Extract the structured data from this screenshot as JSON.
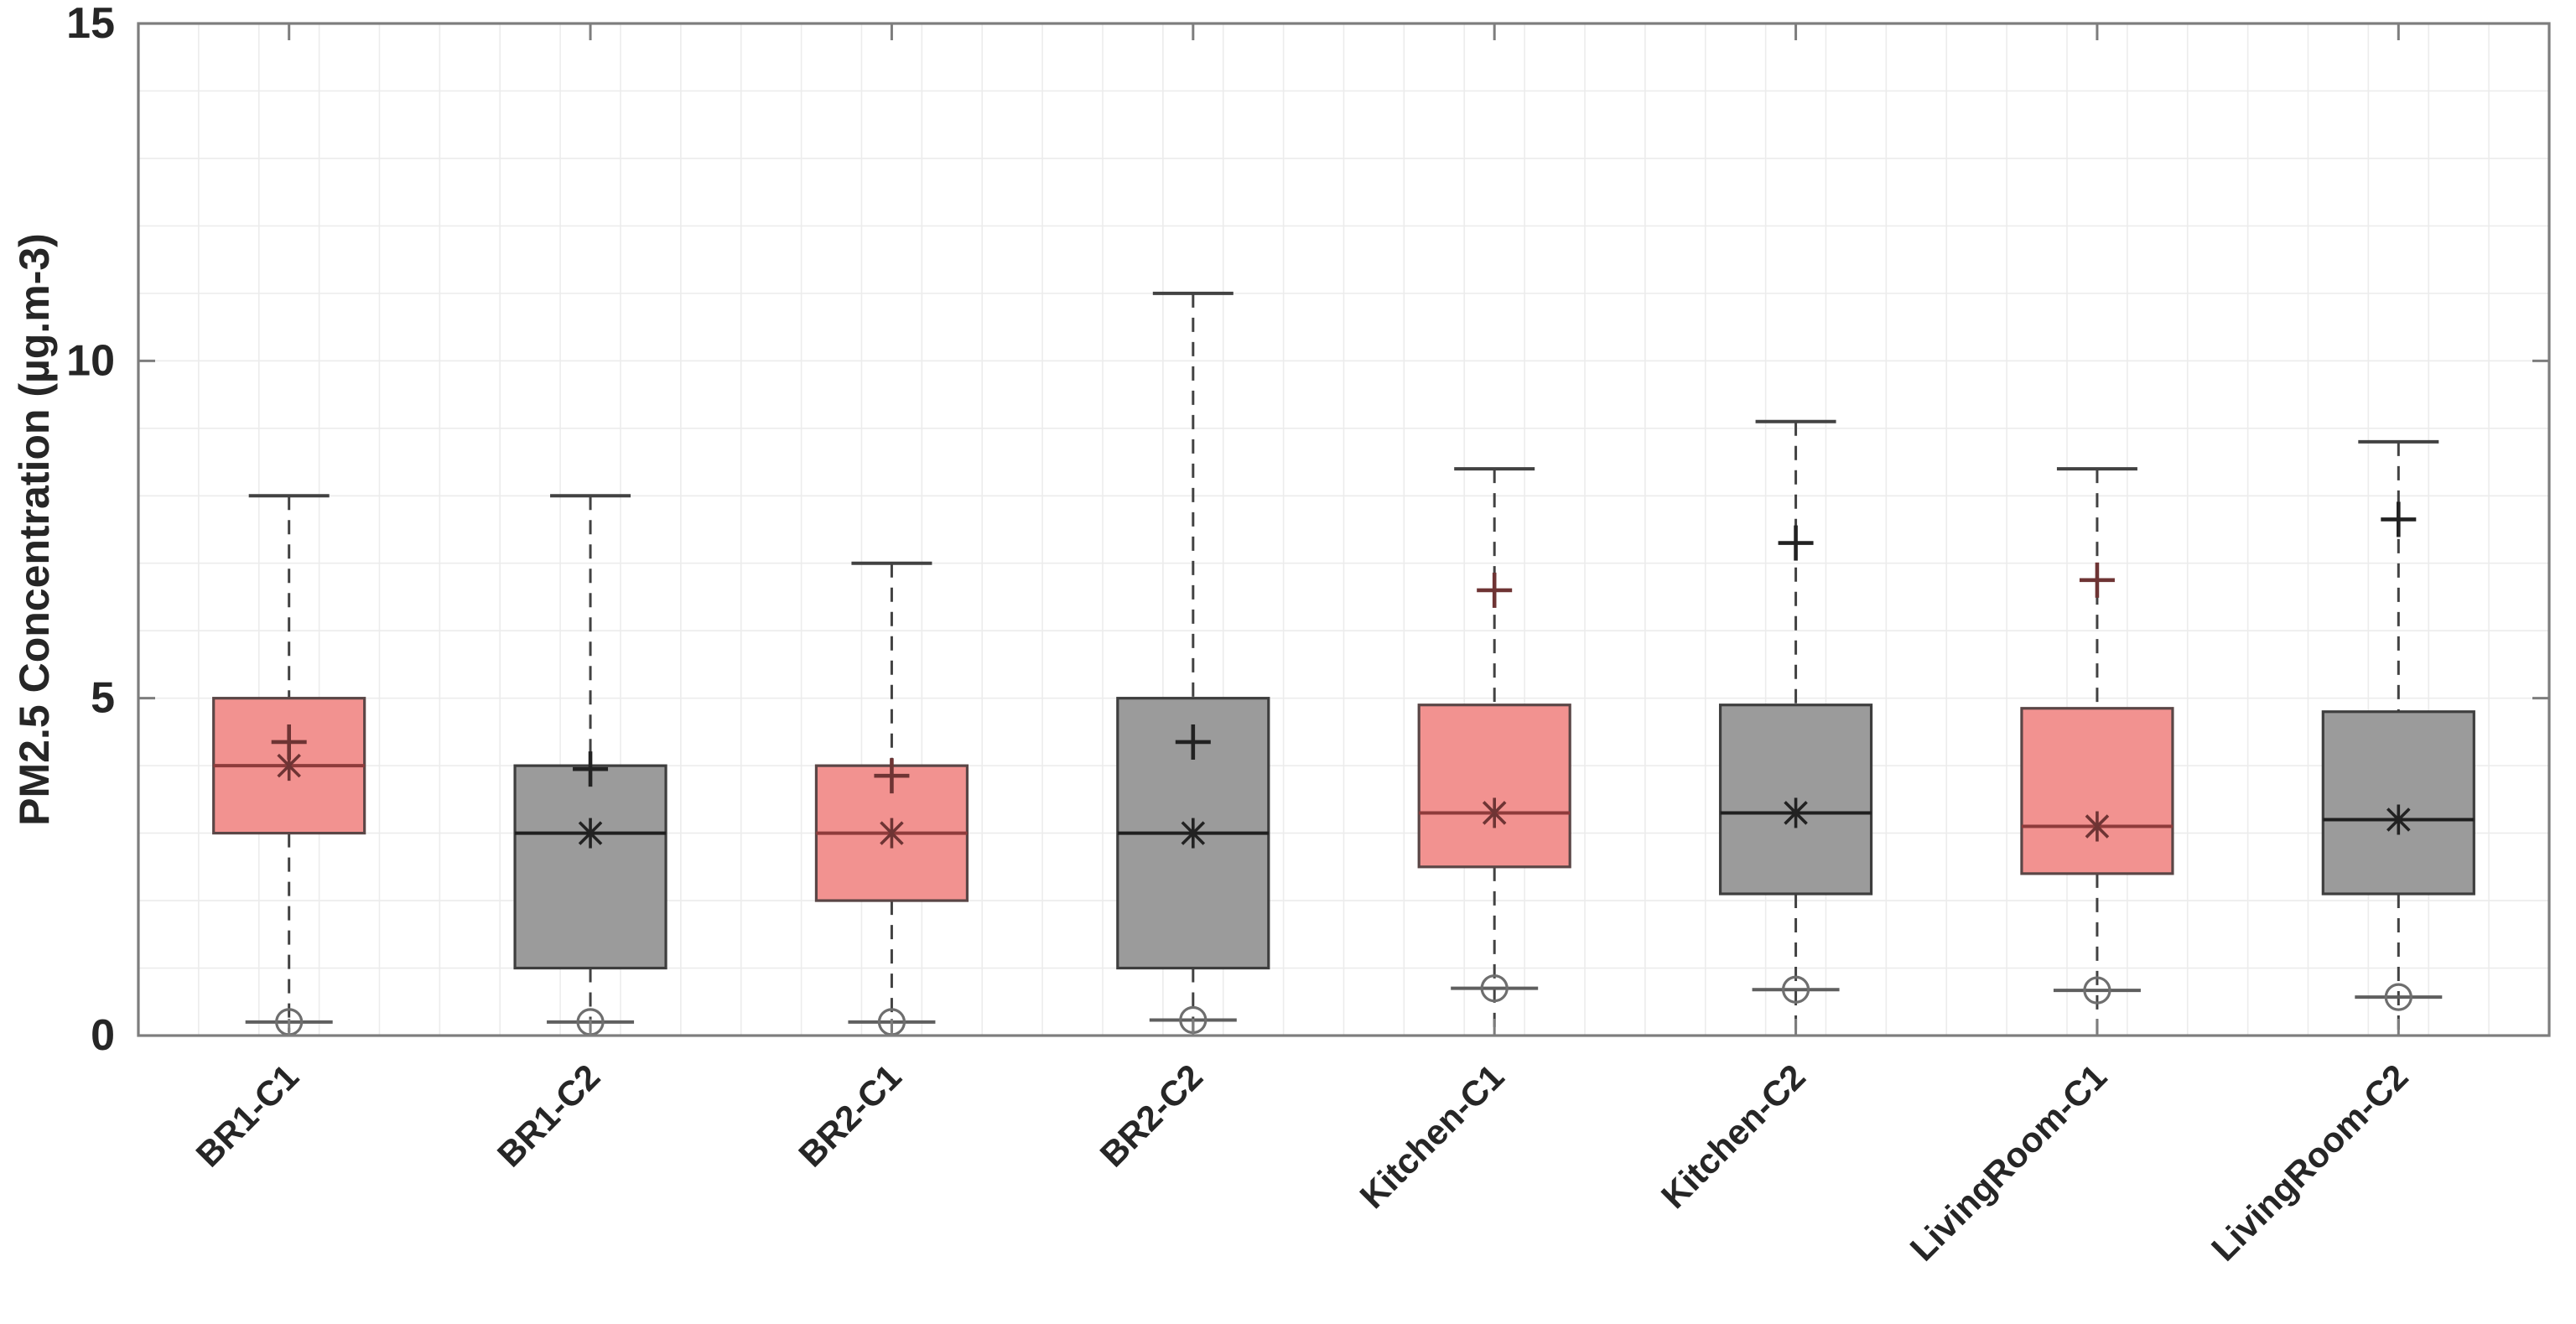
{
  "figure": {
    "background": "#ffffff",
    "description": "Box plot of PM2.5 concentration by room and condition"
  },
  "colors": {
    "pink_fill": "#F29290",
    "pink_border": "#5A4646",
    "pink_median": "#8E3B3B",
    "pink_marker": "#6E3434",
    "gray_fill": "#9B9B9B",
    "gray_border": "#3E3E3E",
    "gray_median": "#1F1F1F",
    "gray_marker": "#222222",
    "whisker": "#424242",
    "cap_low": "#5F5F5F",
    "outlier": "#6E6E6E",
    "grid": "#ECECEC",
    "axis_border": "#7D7D7D",
    "tick_text": "#262626"
  },
  "chart_data": {
    "type": "box",
    "title": "",
    "xlabel": "",
    "ylabel": "PM2.5 Concentration (µg.m-3)",
    "ylim": [
      0,
      15
    ],
    "yticks": [
      0,
      5,
      10,
      15
    ],
    "minor_grid_step_y": 1,
    "vertical_gridlines_per_category": 5,
    "grid": true,
    "legend_position": "none",
    "categories": [
      "BR1-C1",
      "BR1-C2",
      "BR2-C1",
      "BR2-C2",
      "Kitchen-C1",
      "Kitchen-C2",
      "LivingRoom-C1",
      "LivingRoom-C2"
    ],
    "series_colors": {
      "C1": "pink",
      "C2": "gray"
    },
    "boxes": [
      {
        "label": "BR1-C1",
        "group": "C1",
        "whisker_high": 8.0,
        "q3": 5.0,
        "median": 4.0,
        "q1": 3.0,
        "whisker_low": 0.2,
        "outlier_low": 0.2,
        "plus_marker": 4.35,
        "star_marker": 4.0,
        "whisker_low_end": 0.05
      },
      {
        "label": "BR1-C2",
        "group": "C2",
        "whisker_high": 8.0,
        "q3": 4.0,
        "median": 3.0,
        "q1": 1.0,
        "whisker_low": 0.2,
        "outlier_low": 0.2,
        "plus_marker": 3.95,
        "star_marker": 3.0,
        "whisker_low_end": 0.05
      },
      {
        "label": "BR2-C1",
        "group": "C1",
        "whisker_high": 7.0,
        "q3": 4.0,
        "median": 3.0,
        "q1": 2.0,
        "whisker_low": 0.2,
        "outlier_low": 0.2,
        "plus_marker": 3.85,
        "star_marker": 3.0,
        "whisker_low_end": 0.05
      },
      {
        "label": "BR2-C2",
        "group": "C2",
        "whisker_high": 11.0,
        "q3": 5.0,
        "median": 3.0,
        "q1": 1.0,
        "whisker_low": 0.23,
        "outlier_low": 0.23,
        "plus_marker": 4.35,
        "star_marker": 3.0,
        "whisker_low_end": 0.03
      },
      {
        "label": "Kitchen-C1",
        "group": "C1",
        "whisker_high": 8.4,
        "q3": 4.9,
        "median": 3.3,
        "q1": 2.5,
        "whisker_low": 0.7,
        "outlier_low": 0.7,
        "plus_marker": 6.6,
        "star_marker": 3.3,
        "whisker_low_end": 0.05
      },
      {
        "label": "Kitchen-C2",
        "group": "C2",
        "whisker_high": 9.1,
        "q3": 4.9,
        "median": 3.3,
        "q1": 2.1,
        "whisker_low": 0.68,
        "outlier_low": 0.68,
        "plus_marker": 7.3,
        "star_marker": 3.3,
        "whisker_low_end": 0.03
      },
      {
        "label": "LivingRoom-C1",
        "group": "C1",
        "whisker_high": 8.4,
        "q3": 4.85,
        "median": 3.1,
        "q1": 2.4,
        "whisker_low": 0.67,
        "outlier_low": 0.67,
        "plus_marker": 6.75,
        "star_marker": 3.1,
        "whisker_low_end": 0.03
      },
      {
        "label": "LivingRoom-C2",
        "group": "C2",
        "whisker_high": 8.8,
        "q3": 4.8,
        "median": 3.2,
        "q1": 2.1,
        "whisker_low": 0.57,
        "outlier_low": 0.57,
        "plus_marker": 7.65,
        "star_marker": 3.2,
        "whisker_low_end": 0.03
      }
    ]
  }
}
